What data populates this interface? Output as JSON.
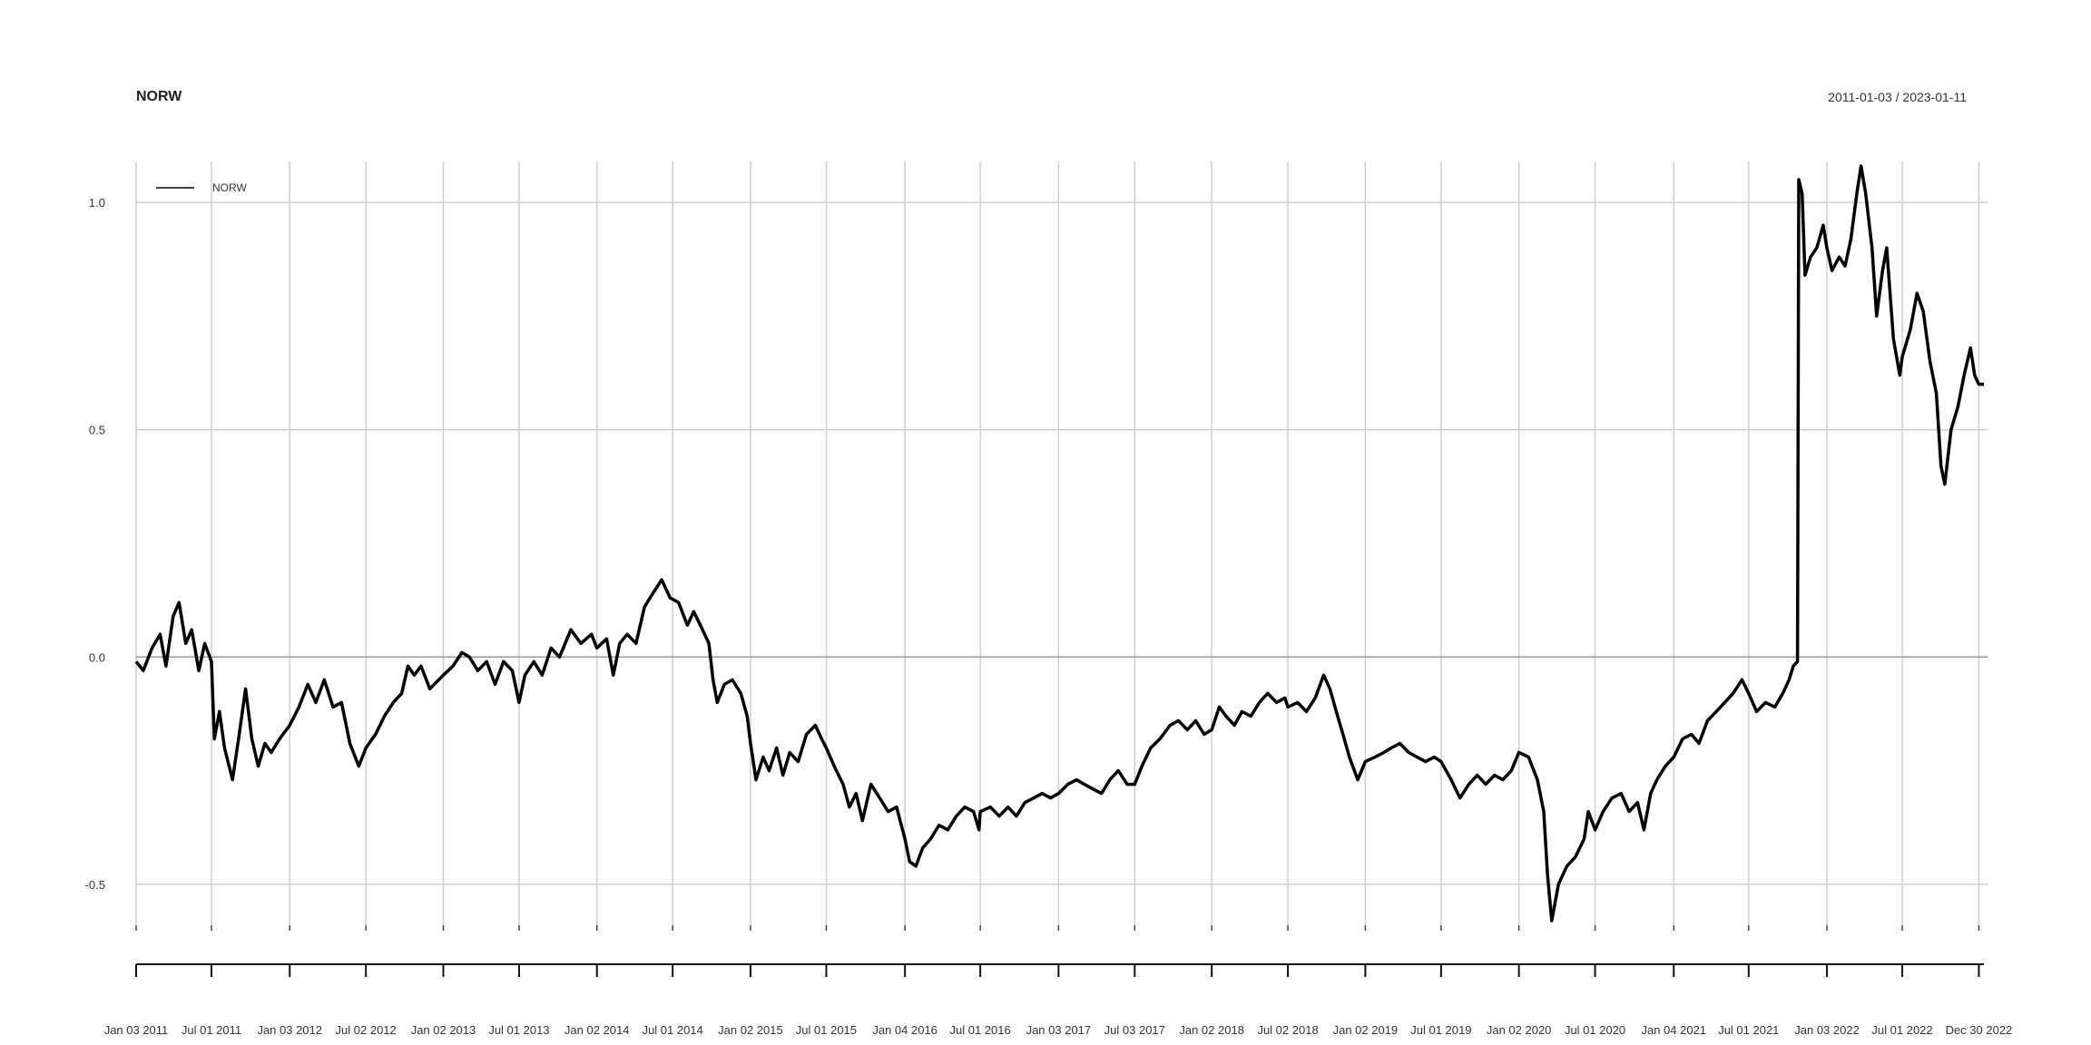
{
  "header": {
    "title": "NORW",
    "date_range": "2011-01-03 / 2023-01-11"
  },
  "chart_data": {
    "type": "line",
    "title": "NORW",
    "subtitle": "2011-01-03 / 2023-01-11",
    "xlabel": "",
    "ylabel": "",
    "ylim": [
      -0.59,
      1.09
    ],
    "y_ticks": [
      {
        "value": 1.0,
        "label": "1.0"
      },
      {
        "value": 0.5,
        "label": "0.5"
      },
      {
        "value": 0.0,
        "label": "0.0"
      },
      {
        "value": -0.5,
        "label": "-0.5"
      }
    ],
    "x_ticks": [
      {
        "date": "2011-01-03",
        "label": "Jan 03 2011"
      },
      {
        "date": "2011-07-01",
        "label": "Jul 01 2011"
      },
      {
        "date": "2012-01-03",
        "label": "Jan 03 2012"
      },
      {
        "date": "2012-07-02",
        "label": "Jul 02 2012"
      },
      {
        "date": "2013-01-02",
        "label": "Jan 02 2013"
      },
      {
        "date": "2013-07-01",
        "label": "Jul 01 2013"
      },
      {
        "date": "2014-01-02",
        "label": "Jan 02 2014"
      },
      {
        "date": "2014-07-01",
        "label": "Jul 01 2014"
      },
      {
        "date": "2015-01-02",
        "label": "Jan 02 2015"
      },
      {
        "date": "2015-07-01",
        "label": "Jul 01 2015"
      },
      {
        "date": "2016-01-04",
        "label": "Jan 04 2016"
      },
      {
        "date": "2016-07-01",
        "label": "Jul 01 2016"
      },
      {
        "date": "2017-01-03",
        "label": "Jan 03 2017"
      },
      {
        "date": "2017-07-03",
        "label": "Jul 03 2017"
      },
      {
        "date": "2018-01-02",
        "label": "Jan 02 2018"
      },
      {
        "date": "2018-07-02",
        "label": "Jul 02 2018"
      },
      {
        "date": "2019-01-02",
        "label": "Jan 02 2019"
      },
      {
        "date": "2019-07-01",
        "label": "Jul 01 2019"
      },
      {
        "date": "2020-01-02",
        "label": "Jan 02 2020"
      },
      {
        "date": "2020-07-01",
        "label": "Jul 01 2020"
      },
      {
        "date": "2021-01-04",
        "label": "Jan 04 2021"
      },
      {
        "date": "2021-07-01",
        "label": "Jul 01 2021"
      },
      {
        "date": "2022-01-03",
        "label": "Jan 03 2022"
      },
      {
        "date": "2022-07-01",
        "label": "Jul 01 2022"
      },
      {
        "date": "2022-12-30",
        "label": "Dec 30 2022"
      }
    ],
    "legend": {
      "position": "top-left",
      "entries": [
        "NORW"
      ]
    },
    "grid": true,
    "series": [
      {
        "name": "NORW",
        "color": "#000000",
        "points": [
          [
            "2011-01-03",
            -0.01
          ],
          [
            "2011-01-20",
            -0.03
          ],
          [
            "2011-02-10",
            0.02
          ],
          [
            "2011-03-01",
            0.05
          ],
          [
            "2011-03-15",
            -0.02
          ],
          [
            "2011-04-01",
            0.09
          ],
          [
            "2011-04-15",
            0.12
          ],
          [
            "2011-05-01",
            0.03
          ],
          [
            "2011-05-15",
            0.06
          ],
          [
            "2011-06-01",
            -0.03
          ],
          [
            "2011-06-15",
            0.03
          ],
          [
            "2011-07-01",
            -0.01
          ],
          [
            "2011-07-08",
            -0.18
          ],
          [
            "2011-07-20",
            -0.12
          ],
          [
            "2011-08-01",
            -0.2
          ],
          [
            "2011-08-20",
            -0.27
          ],
          [
            "2011-09-05",
            -0.17
          ],
          [
            "2011-09-20",
            -0.07
          ],
          [
            "2011-10-05",
            -0.18
          ],
          [
            "2011-10-20",
            -0.24
          ],
          [
            "2011-11-05",
            -0.19
          ],
          [
            "2011-11-20",
            -0.21
          ],
          [
            "2011-12-10",
            -0.18
          ],
          [
            "2012-01-03",
            -0.15
          ],
          [
            "2012-01-25",
            -0.11
          ],
          [
            "2012-02-15",
            -0.06
          ],
          [
            "2012-03-05",
            -0.1
          ],
          [
            "2012-03-25",
            -0.05
          ],
          [
            "2012-04-15",
            -0.11
          ],
          [
            "2012-05-05",
            -0.1
          ],
          [
            "2012-05-25",
            -0.19
          ],
          [
            "2012-06-15",
            -0.24
          ],
          [
            "2012-07-02",
            -0.2
          ],
          [
            "2012-07-25",
            -0.17
          ],
          [
            "2012-08-15",
            -0.13
          ],
          [
            "2012-09-05",
            -0.1
          ],
          [
            "2012-09-25",
            -0.08
          ],
          [
            "2012-10-10",
            -0.02
          ],
          [
            "2012-10-25",
            -0.04
          ],
          [
            "2012-11-10",
            -0.02
          ],
          [
            "2012-12-01",
            -0.07
          ],
          [
            "2013-01-02",
            -0.04
          ],
          [
            "2013-01-25",
            -0.02
          ],
          [
            "2013-02-15",
            0.01
          ],
          [
            "2013-03-05",
            0.0
          ],
          [
            "2013-03-25",
            -0.03
          ],
          [
            "2013-04-15",
            -0.01
          ],
          [
            "2013-05-05",
            -0.06
          ],
          [
            "2013-05-25",
            -0.01
          ],
          [
            "2013-06-15",
            -0.03
          ],
          [
            "2013-07-01",
            -0.1
          ],
          [
            "2013-07-15",
            -0.04
          ],
          [
            "2013-08-05",
            -0.01
          ],
          [
            "2013-08-25",
            -0.04
          ],
          [
            "2013-09-15",
            0.02
          ],
          [
            "2013-10-05",
            0.0
          ],
          [
            "2013-11-01",
            0.06
          ],
          [
            "2013-11-25",
            0.03
          ],
          [
            "2013-12-20",
            0.05
          ],
          [
            "2014-01-02",
            0.02
          ],
          [
            "2014-01-25",
            0.04
          ],
          [
            "2014-02-10",
            -0.04
          ],
          [
            "2014-02-25",
            0.03
          ],
          [
            "2014-03-15",
            0.05
          ],
          [
            "2014-04-05",
            0.03
          ],
          [
            "2014-04-25",
            0.11
          ],
          [
            "2014-05-15",
            0.14
          ],
          [
            "2014-06-05",
            0.17
          ],
          [
            "2014-06-25",
            0.13
          ],
          [
            "2014-07-15",
            0.12
          ],
          [
            "2014-08-05",
            0.07
          ],
          [
            "2014-08-20",
            0.1
          ],
          [
            "2014-09-10",
            0.06
          ],
          [
            "2014-09-25",
            0.03
          ],
          [
            "2014-10-05",
            -0.05
          ],
          [
            "2014-10-15",
            -0.1
          ],
          [
            "2014-11-01",
            -0.06
          ],
          [
            "2014-11-20",
            -0.05
          ],
          [
            "2014-12-10",
            -0.08
          ],
          [
            "2014-12-25",
            -0.13
          ],
          [
            "2015-01-02",
            -0.19
          ],
          [
            "2015-01-15",
            -0.27
          ],
          [
            "2015-02-01",
            -0.22
          ],
          [
            "2015-02-15",
            -0.25
          ],
          [
            "2015-03-05",
            -0.2
          ],
          [
            "2015-03-20",
            -0.26
          ],
          [
            "2015-04-05",
            -0.21
          ],
          [
            "2015-04-25",
            -0.23
          ],
          [
            "2015-05-15",
            -0.17
          ],
          [
            "2015-06-05",
            -0.15
          ],
          [
            "2015-06-20",
            -0.18
          ],
          [
            "2015-07-01",
            -0.2
          ],
          [
            "2015-07-20",
            -0.24
          ],
          [
            "2015-08-10",
            -0.28
          ],
          [
            "2015-08-25",
            -0.33
          ],
          [
            "2015-09-10",
            -0.3
          ],
          [
            "2015-09-25",
            -0.36
          ],
          [
            "2015-10-15",
            -0.28
          ],
          [
            "2015-11-05",
            -0.31
          ],
          [
            "2015-11-25",
            -0.34
          ],
          [
            "2015-12-15",
            -0.33
          ],
          [
            "2016-01-04",
            -0.4
          ],
          [
            "2016-01-15",
            -0.45
          ],
          [
            "2016-01-30",
            -0.46
          ],
          [
            "2016-02-15",
            -0.42
          ],
          [
            "2016-03-05",
            -0.4
          ],
          [
            "2016-03-25",
            -0.37
          ],
          [
            "2016-04-15",
            -0.38
          ],
          [
            "2016-05-05",
            -0.35
          ],
          [
            "2016-05-25",
            -0.33
          ],
          [
            "2016-06-15",
            -0.34
          ],
          [
            "2016-06-28",
            -0.38
          ],
          [
            "2016-07-01",
            -0.34
          ],
          [
            "2016-07-25",
            -0.33
          ],
          [
            "2016-08-15",
            -0.35
          ],
          [
            "2016-09-05",
            -0.33
          ],
          [
            "2016-09-25",
            -0.35
          ],
          [
            "2016-10-15",
            -0.32
          ],
          [
            "2016-11-05",
            -0.31
          ],
          [
            "2016-11-25",
            -0.3
          ],
          [
            "2016-12-15",
            -0.31
          ],
          [
            "2017-01-03",
            -0.3
          ],
          [
            "2017-01-25",
            -0.28
          ],
          [
            "2017-02-15",
            -0.27
          ],
          [
            "2017-03-05",
            -0.28
          ],
          [
            "2017-03-25",
            -0.29
          ],
          [
            "2017-04-15",
            -0.3
          ],
          [
            "2017-05-05",
            -0.27
          ],
          [
            "2017-05-25",
            -0.25
          ],
          [
            "2017-06-15",
            -0.28
          ],
          [
            "2017-07-03",
            -0.28
          ],
          [
            "2017-07-20",
            -0.24
          ],
          [
            "2017-08-10",
            -0.2
          ],
          [
            "2017-09-01",
            -0.18
          ],
          [
            "2017-09-25",
            -0.15
          ],
          [
            "2017-10-15",
            -0.14
          ],
          [
            "2017-11-05",
            -0.16
          ],
          [
            "2017-11-25",
            -0.14
          ],
          [
            "2017-12-15",
            -0.17
          ],
          [
            "2018-01-02",
            -0.16
          ],
          [
            "2018-01-20",
            -0.11
          ],
          [
            "2018-02-05",
            -0.13
          ],
          [
            "2018-02-25",
            -0.15
          ],
          [
            "2018-03-15",
            -0.12
          ],
          [
            "2018-04-05",
            -0.13
          ],
          [
            "2018-04-25",
            -0.1
          ],
          [
            "2018-05-15",
            -0.08
          ],
          [
            "2018-06-05",
            -0.1
          ],
          [
            "2018-06-25",
            -0.09
          ],
          [
            "2018-07-02",
            -0.11
          ],
          [
            "2018-07-25",
            -0.1
          ],
          [
            "2018-08-15",
            -0.12
          ],
          [
            "2018-09-05",
            -0.09
          ],
          [
            "2018-09-25",
            -0.04
          ],
          [
            "2018-10-10",
            -0.07
          ],
          [
            "2018-10-25",
            -0.12
          ],
          [
            "2018-11-10",
            -0.17
          ],
          [
            "2018-11-25",
            -0.22
          ],
          [
            "2018-12-15",
            -0.27
          ],
          [
            "2019-01-02",
            -0.23
          ],
          [
            "2019-01-25",
            -0.22
          ],
          [
            "2019-02-15",
            -0.21
          ],
          [
            "2019-03-05",
            -0.2
          ],
          [
            "2019-03-25",
            -0.19
          ],
          [
            "2019-04-15",
            -0.21
          ],
          [
            "2019-05-05",
            -0.22
          ],
          [
            "2019-05-25",
            -0.23
          ],
          [
            "2019-06-15",
            -0.22
          ],
          [
            "2019-07-01",
            -0.23
          ],
          [
            "2019-07-25",
            -0.27
          ],
          [
            "2019-08-15",
            -0.31
          ],
          [
            "2019-09-05",
            -0.28
          ],
          [
            "2019-09-25",
            -0.26
          ],
          [
            "2019-10-15",
            -0.28
          ],
          [
            "2019-11-05",
            -0.26
          ],
          [
            "2019-11-25",
            -0.27
          ],
          [
            "2019-12-15",
            -0.25
          ],
          [
            "2020-01-02",
            -0.21
          ],
          [
            "2020-01-25",
            -0.22
          ],
          [
            "2020-02-15",
            -0.27
          ],
          [
            "2020-03-01",
            -0.34
          ],
          [
            "2020-03-10",
            -0.48
          ],
          [
            "2020-03-20",
            -0.58
          ],
          [
            "2020-04-05",
            -0.5
          ],
          [
            "2020-04-25",
            -0.46
          ],
          [
            "2020-05-15",
            -0.44
          ],
          [
            "2020-06-05",
            -0.4
          ],
          [
            "2020-06-15",
            -0.34
          ],
          [
            "2020-07-01",
            -0.38
          ],
          [
            "2020-07-20",
            -0.34
          ],
          [
            "2020-08-10",
            -0.31
          ],
          [
            "2020-09-01",
            -0.3
          ],
          [
            "2020-09-20",
            -0.34
          ],
          [
            "2020-10-10",
            -0.32
          ],
          [
            "2020-10-25",
            -0.38
          ],
          [
            "2020-11-10",
            -0.3
          ],
          [
            "2020-11-25",
            -0.27
          ],
          [
            "2020-12-15",
            -0.24
          ],
          [
            "2021-01-04",
            -0.22
          ],
          [
            "2021-01-25",
            -0.18
          ],
          [
            "2021-02-15",
            -0.17
          ],
          [
            "2021-03-05",
            -0.19
          ],
          [
            "2021-03-25",
            -0.14
          ],
          [
            "2021-04-15",
            -0.12
          ],
          [
            "2021-05-05",
            -0.1
          ],
          [
            "2021-05-25",
            -0.08
          ],
          [
            "2021-06-15",
            -0.05
          ],
          [
            "2021-07-01",
            -0.08
          ],
          [
            "2021-07-20",
            -0.12
          ],
          [
            "2021-08-10",
            -0.1
          ],
          [
            "2021-09-01",
            -0.11
          ],
          [
            "2021-09-20",
            -0.08
          ],
          [
            "2021-10-05",
            -0.05
          ],
          [
            "2021-10-15",
            -0.02
          ],
          [
            "2021-10-25",
            -0.01
          ],
          [
            "2021-10-28",
            1.05
          ],
          [
            "2021-11-05",
            1.02
          ],
          [
            "2021-11-12",
            0.84
          ],
          [
            "2021-11-25",
            0.88
          ],
          [
            "2021-12-10",
            0.9
          ],
          [
            "2021-12-25",
            0.95
          ],
          [
            "2022-01-03",
            0.9
          ],
          [
            "2022-01-15",
            0.85
          ],
          [
            "2022-02-01",
            0.88
          ],
          [
            "2022-02-15",
            0.86
          ],
          [
            "2022-03-01",
            0.92
          ],
          [
            "2022-03-15",
            1.02
          ],
          [
            "2022-03-25",
            1.08
          ],
          [
            "2022-04-05",
            1.02
          ],
          [
            "2022-04-20",
            0.9
          ],
          [
            "2022-05-01",
            0.75
          ],
          [
            "2022-05-15",
            0.85
          ],
          [
            "2022-05-25",
            0.9
          ],
          [
            "2022-06-10",
            0.7
          ],
          [
            "2022-06-25",
            0.62
          ],
          [
            "2022-07-01",
            0.66
          ],
          [
            "2022-07-20",
            0.72
          ],
          [
            "2022-08-05",
            0.8
          ],
          [
            "2022-08-20",
            0.76
          ],
          [
            "2022-09-05",
            0.65
          ],
          [
            "2022-09-20",
            0.58
          ],
          [
            "2022-10-01",
            0.42
          ],
          [
            "2022-10-10",
            0.38
          ],
          [
            "2022-10-25",
            0.5
          ],
          [
            "2022-11-10",
            0.55
          ],
          [
            "2022-11-25",
            0.62
          ],
          [
            "2022-12-10",
            0.68
          ],
          [
            "2022-12-20",
            0.62
          ],
          [
            "2022-12-30",
            0.6
          ],
          [
            "2023-01-11",
            0.6
          ]
        ]
      }
    ]
  }
}
